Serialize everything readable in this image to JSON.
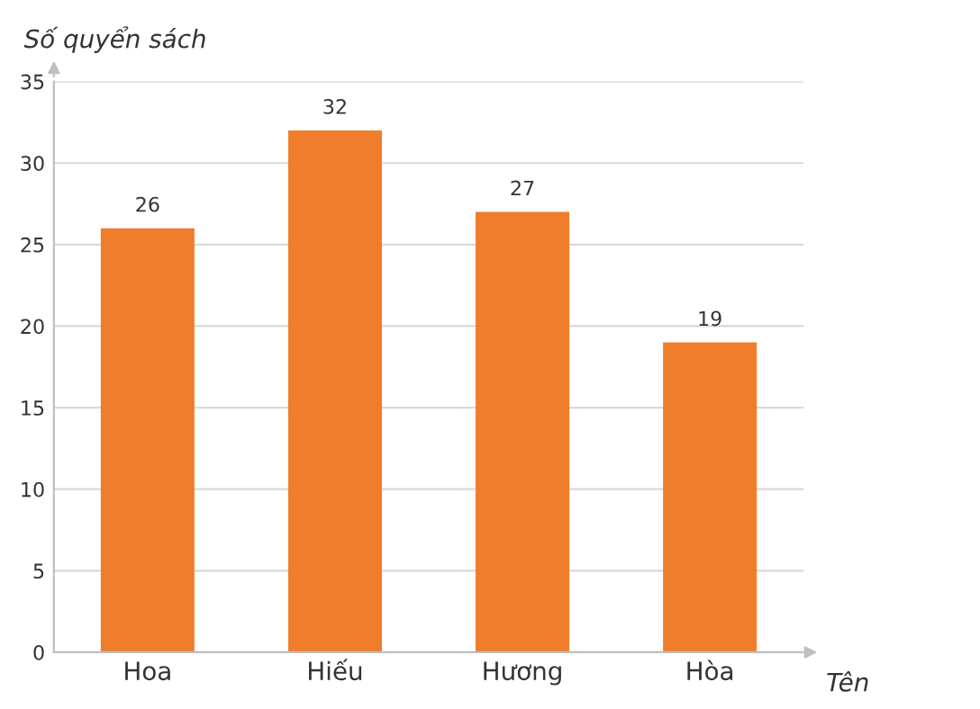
{
  "chart_data": {
    "type": "bar",
    "ylabel": "Số quyển sách",
    "xlabel": "Tên",
    "categories": [
      "Hoa",
      "Hiếu",
      "Hương",
      "Hòa"
    ],
    "values": [
      26,
      32,
      27,
      19
    ],
    "color": "#f07d2c",
    "ylim": [
      0,
      35
    ],
    "yticks": [
      0,
      5,
      10,
      15,
      20,
      25,
      30,
      35
    ],
    "grid": "y",
    "data_labels": true
  }
}
